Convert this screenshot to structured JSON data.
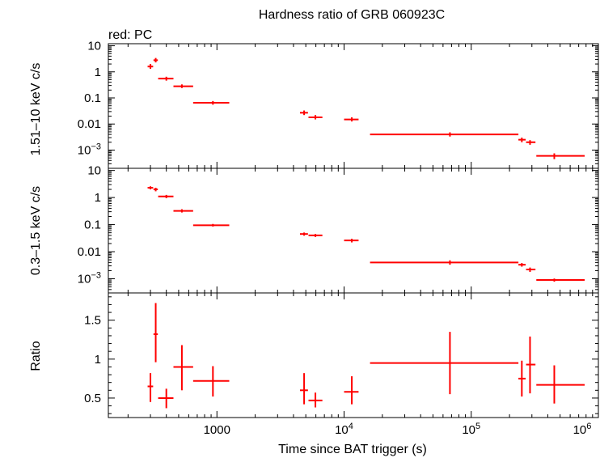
{
  "chart_data": {
    "type": "scatter",
    "title": "Hardness ratio of GRB 060923C",
    "subtitle": "red: PC",
    "xlabel": "Time since BAT trigger (s)",
    "xscale": "log",
    "xlim": [
      140,
      1000000
    ],
    "x_tick_labels": [
      {
        "base": "1000",
        "exp": ""
      },
      {
        "base": "10",
        "exp": "4"
      },
      {
        "base": "10",
        "exp": "5"
      },
      {
        "base": "10",
        "exp": "6"
      }
    ],
    "color": "#ff0000",
    "panels": [
      {
        "id": "hard",
        "ylabel": "1.51–10 keV c/s",
        "yscale": "log",
        "ylim": [
          0.0002,
          12
        ],
        "y_tick_labels": [
          {
            "base": "10",
            "exp": ""
          },
          {
            "base": "1",
            "exp": ""
          },
          {
            "base": "0.1",
            "exp": ""
          },
          {
            "base": "0.01",
            "exp": ""
          },
          {
            "base": "10",
            "exp": "−3"
          }
        ],
        "points": [
          {
            "x": 300,
            "xlo": 285,
            "xhi": 315,
            "y": 1.6,
            "ylo": 1.3,
            "yhi": 2.0
          },
          {
            "x": 330,
            "xlo": 317,
            "xhi": 343,
            "y": 2.8,
            "ylo": 2.3,
            "yhi": 3.4
          },
          {
            "x": 400,
            "xlo": 345,
            "xhi": 455,
            "y": 0.55,
            "ylo": 0.46,
            "yhi": 0.65
          },
          {
            "x": 530,
            "xlo": 455,
            "xhi": 650,
            "y": 0.28,
            "ylo": 0.24,
            "yhi": 0.33
          },
          {
            "x": 930,
            "xlo": 650,
            "xhi": 1250,
            "y": 0.065,
            "ylo": 0.055,
            "yhi": 0.076
          },
          {
            "x": 4850,
            "xlo": 4500,
            "xhi": 5200,
            "y": 0.027,
            "ylo": 0.022,
            "yhi": 0.033
          },
          {
            "x": 5950,
            "xlo": 5250,
            "xhi": 6750,
            "y": 0.018,
            "ylo": 0.015,
            "yhi": 0.022
          },
          {
            "x": 11500,
            "xlo": 10000,
            "xhi": 13000,
            "y": 0.015,
            "ylo": 0.0125,
            "yhi": 0.018
          },
          {
            "x": 68000,
            "xlo": 16000,
            "xhi": 235000,
            "y": 0.004,
            "ylo": 0.0033,
            "yhi": 0.0048
          },
          {
            "x": 250000,
            "xlo": 235000,
            "xhi": 268000,
            "y": 0.0025,
            "ylo": 0.002,
            "yhi": 0.003
          },
          {
            "x": 290000,
            "xlo": 270000,
            "xhi": 320000,
            "y": 0.002,
            "ylo": 0.0016,
            "yhi": 0.0024
          },
          {
            "x": 450000,
            "xlo": 325000,
            "xhi": 780000,
            "y": 0.0006,
            "ylo": 0.00045,
            "yhi": 0.00075
          }
        ]
      },
      {
        "id": "soft",
        "ylabel": "0.3–1.5 keV c/s",
        "yscale": "log",
        "ylim": [
          0.0003,
          12
        ],
        "y_tick_labels": [
          {
            "base": "10",
            "exp": ""
          },
          {
            "base": "1",
            "exp": ""
          },
          {
            "base": "0.1",
            "exp": ""
          },
          {
            "base": "0.01",
            "exp": ""
          },
          {
            "base": "10",
            "exp": "−3"
          }
        ],
        "points": [
          {
            "x": 300,
            "xlo": 285,
            "xhi": 315,
            "y": 2.3,
            "ylo": 2.0,
            "yhi": 2.6
          },
          {
            "x": 330,
            "xlo": 317,
            "xhi": 343,
            "y": 2.0,
            "ylo": 1.7,
            "yhi": 2.3
          },
          {
            "x": 400,
            "xlo": 345,
            "xhi": 455,
            "y": 1.1,
            "ylo": 0.95,
            "yhi": 1.25
          },
          {
            "x": 530,
            "xlo": 455,
            "xhi": 650,
            "y": 0.32,
            "ylo": 0.28,
            "yhi": 0.37
          },
          {
            "x": 930,
            "xlo": 650,
            "xhi": 1250,
            "y": 0.095,
            "ylo": 0.085,
            "yhi": 0.106
          },
          {
            "x": 4850,
            "xlo": 4500,
            "xhi": 5200,
            "y": 0.045,
            "ylo": 0.039,
            "yhi": 0.051
          },
          {
            "x": 5950,
            "xlo": 5250,
            "xhi": 6750,
            "y": 0.04,
            "ylo": 0.035,
            "yhi": 0.045
          },
          {
            "x": 11500,
            "xlo": 10000,
            "xhi": 13000,
            "y": 0.026,
            "ylo": 0.022,
            "yhi": 0.03
          },
          {
            "x": 68000,
            "xlo": 16000,
            "xhi": 235000,
            "y": 0.004,
            "ylo": 0.0033,
            "yhi": 0.0048
          },
          {
            "x": 250000,
            "xlo": 235000,
            "xhi": 268000,
            "y": 0.0033,
            "ylo": 0.0028,
            "yhi": 0.0038
          },
          {
            "x": 290000,
            "xlo": 270000,
            "xhi": 320000,
            "y": 0.0022,
            "ylo": 0.0018,
            "yhi": 0.0026
          },
          {
            "x": 450000,
            "xlo": 325000,
            "xhi": 780000,
            "y": 0.0009,
            "ylo": 0.00078,
            "yhi": 0.00102
          }
        ]
      },
      {
        "id": "ratio",
        "ylabel": "Ratio",
        "yscale": "linear",
        "ylim": [
          0.25,
          1.85
        ],
        "yticks": [
          0.5,
          1,
          1.5
        ],
        "y_tick_labels": [
          {
            "base": "0.5",
            "exp": ""
          },
          {
            "base": "1",
            "exp": ""
          },
          {
            "base": "1.5",
            "exp": ""
          }
        ],
        "points": [
          {
            "x": 300,
            "xlo": 285,
            "xhi": 315,
            "y": 0.65,
            "ylo": 0.45,
            "yhi": 0.82
          },
          {
            "x": 330,
            "xlo": 317,
            "xhi": 343,
            "y": 1.32,
            "ylo": 0.96,
            "yhi": 1.72
          },
          {
            "x": 400,
            "xlo": 345,
            "xhi": 455,
            "y": 0.5,
            "ylo": 0.37,
            "yhi": 0.62
          },
          {
            "x": 530,
            "xlo": 455,
            "xhi": 650,
            "y": 0.9,
            "ylo": 0.6,
            "yhi": 1.18
          },
          {
            "x": 930,
            "xlo": 650,
            "xhi": 1250,
            "y": 0.72,
            "ylo": 0.52,
            "yhi": 0.91
          },
          {
            "x": 4850,
            "xlo": 4500,
            "xhi": 5200,
            "y": 0.6,
            "ylo": 0.42,
            "yhi": 0.82
          },
          {
            "x": 5950,
            "xlo": 5250,
            "xhi": 6750,
            "y": 0.47,
            "ylo": 0.38,
            "yhi": 0.57
          },
          {
            "x": 11500,
            "xlo": 10000,
            "xhi": 13000,
            "y": 0.58,
            "ylo": 0.42,
            "yhi": 0.78
          },
          {
            "x": 68000,
            "xlo": 16000,
            "xhi": 235000,
            "y": 0.95,
            "ylo": 0.55,
            "yhi": 1.35
          },
          {
            "x": 250000,
            "xlo": 235000,
            "xhi": 268000,
            "y": 0.75,
            "ylo": 0.52,
            "yhi": 0.98
          },
          {
            "x": 290000,
            "xlo": 270000,
            "xhi": 320000,
            "y": 0.93,
            "ylo": 0.56,
            "yhi": 1.29
          },
          {
            "x": 450000,
            "xlo": 325000,
            "xhi": 780000,
            "y": 0.67,
            "ylo": 0.43,
            "yhi": 0.92
          }
        ]
      }
    ]
  }
}
